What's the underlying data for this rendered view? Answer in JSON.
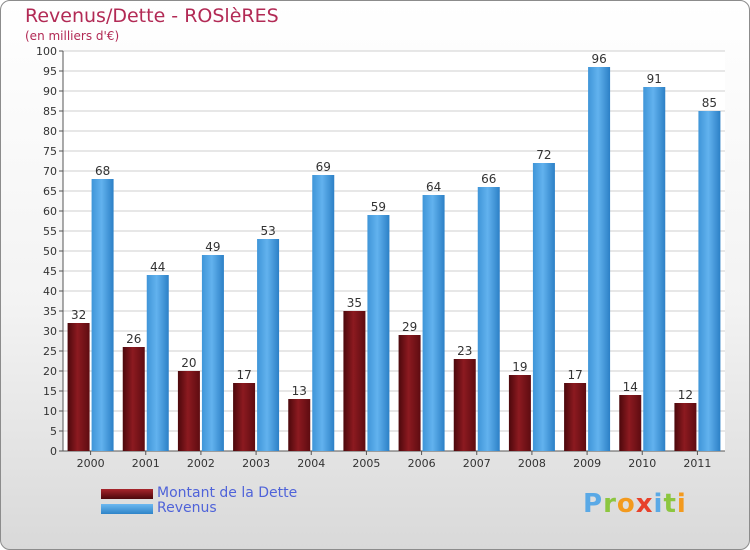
{
  "title": "Revenus/Dette - ROSlèRES",
  "subtitle": "(en milliers d'€)",
  "colors": {
    "debt": "#7a1218",
    "revenue": "#4aa3e6",
    "title": "#b22a55",
    "legend_text": "#4f63d9"
  },
  "legend": [
    {
      "label": "Montant de la Dette",
      "color": "#7a1218"
    },
    {
      "label": "Revenus",
      "color": "#4aa3e6"
    }
  ],
  "logo": {
    "text": "Proxiti",
    "letters": [
      {
        "ch": "P",
        "color": "#5aa9e6"
      },
      {
        "ch": "r",
        "color": "#8cc63f"
      },
      {
        "ch": "o",
        "color": "#f39a1e"
      },
      {
        "ch": "x",
        "color": "#e8412a"
      },
      {
        "ch": "i",
        "color": "#5aa9e6"
      },
      {
        "ch": "t",
        "color": "#8cc63f"
      },
      {
        "ch": "i",
        "color": "#f39a1e"
      }
    ]
  },
  "chart_data": {
    "type": "bar",
    "categories": [
      "2000",
      "2001",
      "2002",
      "2003",
      "2004",
      "2005",
      "2006",
      "2007",
      "2008",
      "2009",
      "2010",
      "2011"
    ],
    "series": [
      {
        "name": "Montant de la Dette",
        "values": [
          32,
          26,
          20,
          17,
          13,
          35,
          29,
          23,
          19,
          17,
          14,
          12
        ]
      },
      {
        "name": "Revenus",
        "values": [
          68,
          44,
          49,
          53,
          69,
          59,
          64,
          66,
          72,
          96,
          91,
          85
        ]
      }
    ],
    "ylim": [
      0,
      100
    ],
    "yticks": [
      0,
      5,
      10,
      15,
      20,
      25,
      30,
      35,
      40,
      45,
      50,
      55,
      60,
      65,
      70,
      75,
      80,
      85,
      90,
      95,
      100
    ],
    "grid": true,
    "legend_position": "bottom-left"
  }
}
